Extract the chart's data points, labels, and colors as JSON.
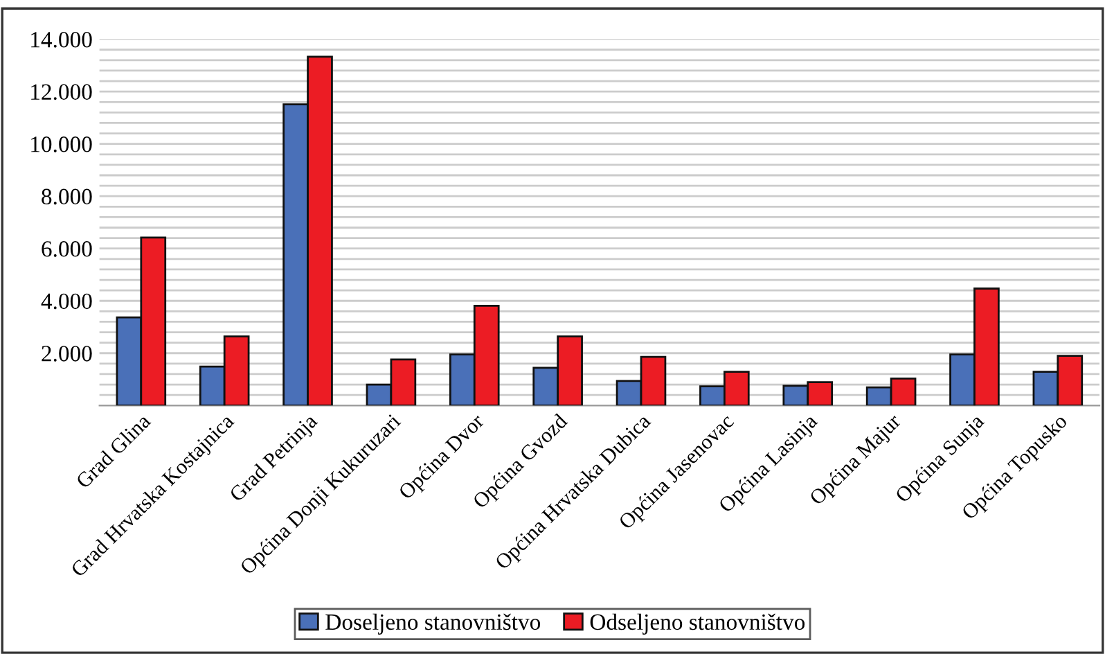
{
  "chart_data": {
    "type": "bar",
    "categories": [
      "Grad Glina",
      "Grad Hrvatska Kostajnica",
      "Grad Petrinja",
      "Općina Donji Kukuruzari",
      "Općina Dvor",
      "Općina Gvozd",
      "Općina Hrvatska Dubica",
      "Općina Jasenovac",
      "Općina Lasinja",
      "Općina Majur",
      "Općina Sunja",
      "Općina Topusko"
    ],
    "series": [
      {
        "name": "Doseljeno stanovništvo",
        "color": "#4a70b8",
        "values": [
          3370,
          1490,
          11510,
          800,
          1950,
          1440,
          940,
          730,
          750,
          690,
          1950,
          1290
        ]
      },
      {
        "name": "Odseljeno stanovništvo",
        "color": "#ec1c24",
        "values": [
          6420,
          2640,
          13330,
          1760,
          3810,
          2640,
          1860,
          1290,
          890,
          1030,
          4470,
          1900
        ]
      }
    ],
    "ylim": [
      0,
      14000
    ],
    "yticks": [
      {
        "value": 400,
        "label": null
      },
      {
        "value": 800,
        "label": null
      },
      {
        "value": 1200,
        "label": null
      },
      {
        "value": 1600,
        "label": null
      },
      {
        "value": 2000,
        "label": "2.000"
      },
      {
        "value": 2400,
        "label": null
      },
      {
        "value": 2800,
        "label": null
      },
      {
        "value": 3200,
        "label": null
      },
      {
        "value": 3600,
        "label": null
      },
      {
        "value": 4000,
        "label": "4.000"
      },
      {
        "value": 4400,
        "label": null
      },
      {
        "value": 4800,
        "label": null
      },
      {
        "value": 5200,
        "label": null
      },
      {
        "value": 5600,
        "label": null
      },
      {
        "value": 6000,
        "label": "6.000"
      },
      {
        "value": 6400,
        "label": null
      },
      {
        "value": 6800,
        "label": null
      },
      {
        "value": 7200,
        "label": null
      },
      {
        "value": 7600,
        "label": null
      },
      {
        "value": 8000,
        "label": "8.000"
      },
      {
        "value": 8400,
        "label": null
      },
      {
        "value": 8800,
        "label": null
      },
      {
        "value": 9200,
        "label": null
      },
      {
        "value": 9600,
        "label": null
      },
      {
        "value": 10000,
        "label": "10.000"
      },
      {
        "value": 10400,
        "label": null
      },
      {
        "value": 10800,
        "label": null
      },
      {
        "value": 11200,
        "label": null
      },
      {
        "value": 11600,
        "label": null
      },
      {
        "value": 12000,
        "label": "12.000"
      },
      {
        "value": 12400,
        "label": null
      },
      {
        "value": 12800,
        "label": null
      },
      {
        "value": 13200,
        "label": null
      },
      {
        "value": 13600,
        "label": null
      },
      {
        "value": 14000,
        "label": "14.000"
      }
    ],
    "grid": "y",
    "legend": "bottom"
  }
}
